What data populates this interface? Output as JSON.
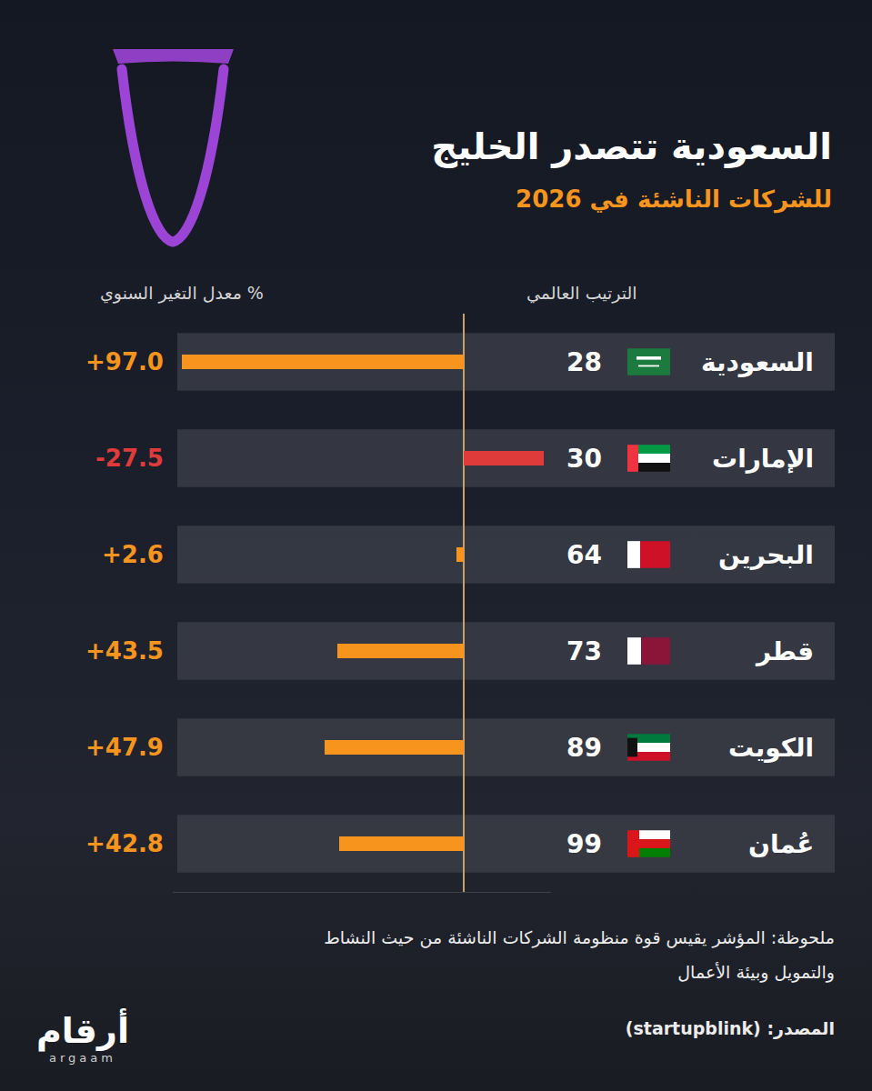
{
  "chart_data": {
    "type": "bar",
    "orientation": "horizontal",
    "title": "السعودية تتصدر الخليج",
    "subtitle": "للشركات الناشئة في 2026",
    "categories": [
      "السعودية",
      "الإمارات",
      "البحرين",
      "قطر",
      "الكويت",
      "عُمان"
    ],
    "values": [
      97.0,
      -27.5,
      2.6,
      43.5,
      47.9,
      42.8
    ],
    "value_labels": [
      "+97.0",
      "-27.5",
      "+2.6",
      "+43.5",
      "+47.9",
      "+42.8"
    ],
    "colors": [
      "#f7941d",
      "#e03b3b",
      "#f7941d",
      "#f7941d",
      "#f7941d",
      "#f7941d"
    ],
    "ranks": [
      28,
      30,
      64,
      73,
      89,
      99
    ],
    "rank_header": "الترتيب العالمي",
    "value_header": "معدل التغير السنوي %",
    "xlim": [
      -30,
      100
    ],
    "data_labels": true,
    "tick_labels": false,
    "grid": false
  },
  "note": [
    "ملحوظة: المؤشر يقيس قوة منظومة الشركات الناشئة من حيث النشاط",
    "والتمويل وبيئة الأعمال"
  ],
  "source": "المصدر: (startupblink)",
  "logo": "أرقام",
  "logo_latin": "argaam"
}
